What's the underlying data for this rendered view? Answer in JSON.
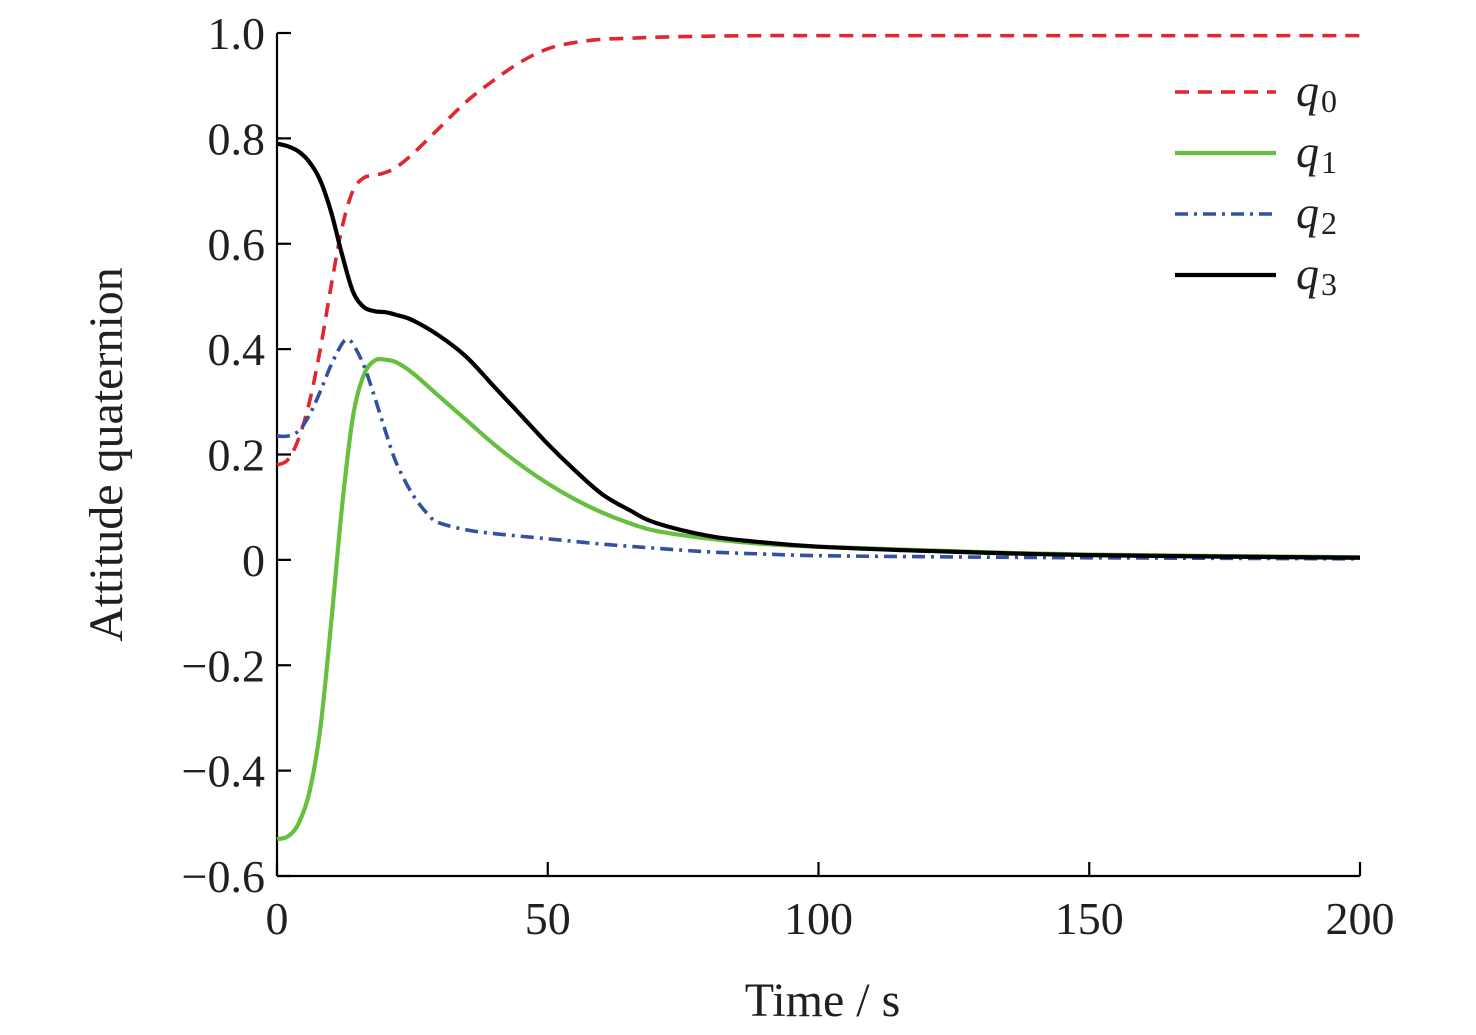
{
  "chart_data": {
    "type": "line",
    "title": "",
    "xlabel": "Time / s",
    "ylabel": "Attitude quaternion",
    "xlim": [
      0,
      200
    ],
    "ylim": [
      -0.6,
      1.0
    ],
    "xticks": [
      0,
      50,
      100,
      150,
      200
    ],
    "xtick_labels": [
      "0",
      "50",
      "100",
      "150",
      "200"
    ],
    "yticks": [
      -0.6,
      -0.4,
      -0.2,
      0,
      0.2,
      0.4,
      0.6,
      0.8,
      1.0
    ],
    "ytick_labels": [
      "−0.6",
      "−0.4",
      "−0.2",
      "0",
      "0.2",
      "0.4",
      "0.6",
      "0.8",
      "1.0"
    ],
    "grid": false,
    "legend_position": "top-right",
    "series": [
      {
        "name": "q0",
        "label_main": "q",
        "label_sub": "0",
        "color": "#e0262e",
        "style": "dashed",
        "x": [
          0,
          2,
          4,
          6,
          8,
          10,
          12,
          14,
          16,
          18,
          20,
          22,
          25,
          30,
          35,
          40,
          45,
          50,
          55,
          60,
          65,
          70,
          80,
          90,
          100,
          120,
          150,
          200
        ],
        "y": [
          0.18,
          0.19,
          0.23,
          0.3,
          0.4,
          0.52,
          0.63,
          0.7,
          0.725,
          0.73,
          0.735,
          0.745,
          0.77,
          0.82,
          0.87,
          0.91,
          0.945,
          0.97,
          0.982,
          0.988,
          0.99,
          0.992,
          0.994,
          0.995,
          0.995,
          0.995,
          0.995,
          0.995
        ]
      },
      {
        "name": "q1",
        "label_main": "q",
        "label_sub": "1",
        "color": "#66bf3e",
        "style": "solid",
        "x": [
          0,
          2,
          4,
          6,
          8,
          10,
          12,
          14,
          16,
          18,
          20,
          22,
          25,
          30,
          35,
          40,
          45,
          50,
          55,
          60,
          65,
          70,
          80,
          90,
          100,
          120,
          150,
          200
        ],
        "y": [
          -0.53,
          -0.525,
          -0.5,
          -0.44,
          -0.32,
          -0.12,
          0.1,
          0.27,
          0.35,
          0.378,
          0.38,
          0.375,
          0.355,
          0.31,
          0.265,
          0.22,
          0.18,
          0.145,
          0.115,
          0.09,
          0.07,
          0.055,
          0.04,
          0.03,
          0.025,
          0.018,
          0.01,
          0.005
        ]
      },
      {
        "name": "q2",
        "label_main": "q",
        "label_sub": "2",
        "color": "#3350a2",
        "style": "dashdot",
        "x": [
          0,
          2,
          4,
          6,
          8,
          10,
          12,
          13,
          14,
          16,
          18,
          20,
          22,
          25,
          28,
          30,
          35,
          40,
          50,
          60,
          70,
          80,
          90,
          100,
          120,
          150,
          200
        ],
        "y": [
          0.235,
          0.235,
          0.245,
          0.275,
          0.32,
          0.37,
          0.41,
          0.418,
          0.41,
          0.37,
          0.31,
          0.245,
          0.185,
          0.125,
          0.085,
          0.07,
          0.057,
          0.05,
          0.04,
          0.03,
          0.022,
          0.015,
          0.011,
          0.008,
          0.006,
          0.004,
          0.002
        ]
      },
      {
        "name": "q3",
        "label_main": "q",
        "label_sub": "3",
        "color": "#000000",
        "style": "solid",
        "x": [
          0,
          2,
          4,
          6,
          8,
          10,
          12,
          14,
          16,
          18,
          20,
          22,
          25,
          30,
          35,
          40,
          45,
          50,
          55,
          60,
          65,
          70,
          80,
          90,
          100,
          120,
          150,
          200
        ],
        "y": [
          0.79,
          0.785,
          0.775,
          0.755,
          0.72,
          0.66,
          0.58,
          0.51,
          0.48,
          0.472,
          0.47,
          0.465,
          0.455,
          0.425,
          0.385,
          0.33,
          0.275,
          0.22,
          0.17,
          0.125,
          0.095,
          0.07,
          0.045,
          0.033,
          0.025,
          0.017,
          0.009,
          0.004
        ]
      }
    ]
  }
}
